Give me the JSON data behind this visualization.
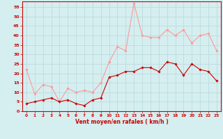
{
  "x": [
    0,
    1,
    2,
    3,
    4,
    5,
    6,
    7,
    8,
    9,
    10,
    11,
    12,
    13,
    14,
    15,
    16,
    17,
    18,
    19,
    20,
    21,
    22,
    23
  ],
  "wind_avg": [
    4,
    5,
    6,
    7,
    5,
    6,
    4,
    3,
    6,
    7,
    18,
    19,
    21,
    21,
    23,
    23,
    21,
    26,
    25,
    19,
    25,
    22,
    21,
    16
  ],
  "wind_gust": [
    22,
    9,
    14,
    13,
    5,
    12,
    10,
    11,
    10,
    15,
    26,
    34,
    32,
    57,
    40,
    39,
    39,
    43,
    40,
    43,
    36,
    40,
    41,
    32
  ],
  "ylim": [
    0,
    58
  ],
  "yticks": [
    0,
    5,
    10,
    15,
    20,
    25,
    30,
    35,
    40,
    45,
    50,
    55
  ],
  "xlabel": "Vent moyen/en rafales ( km/h )",
  "bg_color": "#d5eef0",
  "grid_color": "#b8d8db",
  "avg_color": "#cc0000",
  "gust_color": "#ff9999",
  "marker": "D",
  "markersize": 1.8,
  "linewidth": 0.8
}
